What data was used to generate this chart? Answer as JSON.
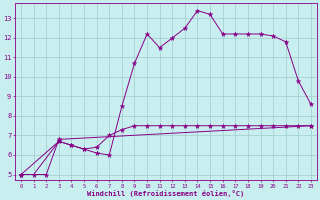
{
  "xlabel": "Windchill (Refroidissement éolien,°C)",
  "bg_color": "#c8eef0",
  "grid_color": "#a0cccc",
  "line_color": "#880088",
  "xlim": [
    -0.5,
    23.5
  ],
  "ylim": [
    4.7,
    13.8
  ],
  "xticks": [
    0,
    1,
    2,
    3,
    4,
    5,
    6,
    7,
    8,
    9,
    10,
    11,
    12,
    13,
    14,
    15,
    16,
    17,
    18,
    19,
    20,
    21,
    22,
    23
  ],
  "yticks": [
    5,
    6,
    7,
    8,
    9,
    10,
    11,
    12,
    13
  ],
  "line1_x": [
    0,
    1,
    3,
    4,
    5,
    6,
    7,
    8,
    9,
    10,
    11,
    12,
    13,
    14,
    15,
    16,
    17,
    18,
    19,
    20,
    21,
    22,
    23
  ],
  "line1_y": [
    5.0,
    5.0,
    6.7,
    6.5,
    6.3,
    6.1,
    6.0,
    8.5,
    10.7,
    12.2,
    11.5,
    12.0,
    12.5,
    13.4,
    13.2,
    12.2,
    12.2,
    12.2,
    12.2,
    12.1,
    11.8,
    9.8,
    8.6
  ],
  "line2_x": [
    0,
    2,
    3,
    23
  ],
  "line2_y": [
    5.0,
    5.0,
    6.8,
    7.5
  ],
  "line3_x": [
    0,
    3,
    4,
    5,
    6,
    7,
    8,
    9,
    10,
    11,
    12,
    13,
    14,
    15,
    16,
    17,
    18,
    19,
    20,
    21,
    22,
    23
  ],
  "line3_y": [
    5.0,
    6.7,
    6.5,
    6.3,
    6.4,
    7.0,
    7.3,
    7.5,
    7.5,
    7.5,
    7.5,
    7.5,
    7.5,
    7.5,
    7.5,
    7.5,
    7.5,
    7.5,
    7.5,
    7.5,
    7.5,
    7.5
  ]
}
